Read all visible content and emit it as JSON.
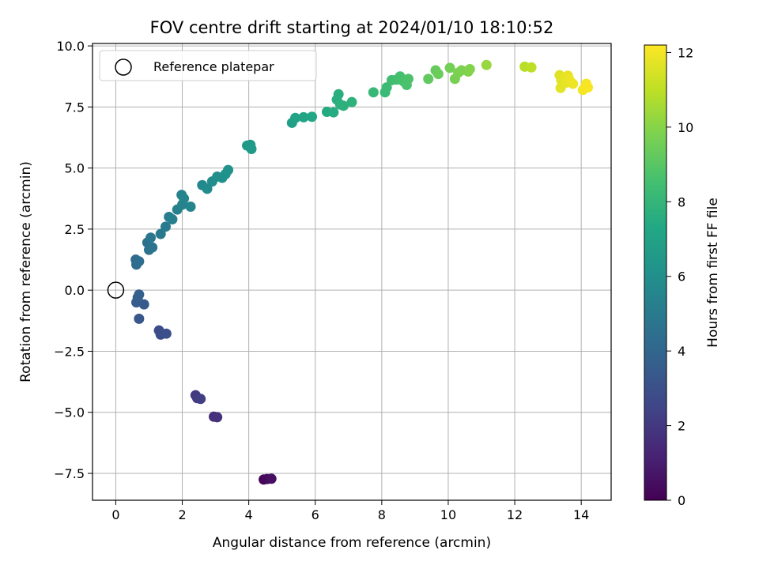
{
  "chart_data": {
    "type": "scatter",
    "title": "FOV centre drift starting at 2024/01/10 18:10:52",
    "xlabel": "Angular distance from reference (arcmin)",
    "ylabel": "Rotation from reference (arcmin)",
    "xlim": [
      -0.7,
      14.9
    ],
    "ylim": [
      -8.6,
      10.1
    ],
    "xticks": [
      0,
      2,
      4,
      6,
      8,
      10,
      12,
      14
    ],
    "yticks": [
      -7.5,
      -5.0,
      -2.5,
      0.0,
      2.5,
      5.0,
      7.5,
      10.0
    ],
    "ytick_labels": [
      "−7.5",
      "−5.0",
      "−2.5",
      "0.0",
      "2.5",
      "5.0",
      "7.5",
      "10.0"
    ],
    "grid": true,
    "legend": {
      "position": "top-left",
      "entries": [
        {
          "label": "Reference platepar",
          "marker": "open-circle"
        }
      ]
    },
    "reference_point": {
      "x": 0,
      "y": 0,
      "label": "Reference platepar"
    },
    "colorbar": {
      "label": "Hours from first FF file",
      "colormap": "viridis",
      "min": 0,
      "max": 12.2,
      "ticks": [
        0,
        2,
        4,
        6,
        8,
        10,
        12
      ]
    },
    "series": [
      {
        "points": [
          [
            4.45,
            -7.75,
            0.1
          ],
          [
            4.55,
            -7.73,
            0.3
          ],
          [
            4.68,
            -7.72,
            0.5
          ],
          [
            2.95,
            -5.18,
            1.6
          ],
          [
            3.05,
            -5.2,
            1.7
          ],
          [
            2.4,
            -4.3,
            2.0
          ],
          [
            2.45,
            -4.42,
            2.1
          ],
          [
            2.55,
            -4.45,
            2.2
          ],
          [
            1.3,
            -1.65,
            2.8
          ],
          [
            1.35,
            -1.82,
            2.9
          ],
          [
            1.52,
            -1.78,
            3.0
          ],
          [
            0.7,
            -1.17,
            3.3
          ],
          [
            0.85,
            -0.58,
            3.4
          ],
          [
            0.62,
            -0.5,
            3.5
          ],
          [
            0.66,
            -0.3,
            3.6
          ],
          [
            0.7,
            -0.18,
            3.7
          ],
          [
            0.6,
            1.25,
            4.2
          ],
          [
            0.62,
            1.05,
            4.3
          ],
          [
            0.7,
            1.18,
            4.4
          ],
          [
            0.95,
            1.95,
            4.5
          ],
          [
            1.0,
            1.65,
            4.6
          ],
          [
            1.1,
            1.75,
            4.7
          ],
          [
            1.05,
            2.15,
            4.8
          ],
          [
            1.35,
            2.3,
            4.9
          ],
          [
            1.5,
            2.6,
            5.0
          ],
          [
            1.6,
            3.0,
            5.1
          ],
          [
            1.7,
            2.9,
            5.2
          ],
          [
            1.85,
            3.3,
            5.3
          ],
          [
            2.0,
            3.5,
            5.35
          ],
          [
            1.98,
            3.9,
            5.4
          ],
          [
            2.05,
            3.75,
            5.45
          ],
          [
            2.25,
            3.42,
            5.5
          ],
          [
            2.6,
            4.3,
            5.7
          ],
          [
            2.75,
            4.15,
            5.8
          ],
          [
            2.9,
            4.45,
            5.9
          ],
          [
            3.05,
            4.65,
            6.0
          ],
          [
            3.2,
            4.6,
            6.05
          ],
          [
            3.3,
            4.75,
            6.1
          ],
          [
            3.38,
            4.92,
            6.2
          ],
          [
            3.95,
            5.92,
            6.5
          ],
          [
            4.05,
            5.95,
            6.55
          ],
          [
            4.08,
            5.78,
            6.6
          ],
          [
            5.3,
            6.85,
            6.9
          ],
          [
            5.4,
            7.05,
            7.0
          ],
          [
            5.65,
            7.08,
            7.1
          ],
          [
            5.9,
            7.1,
            7.2
          ],
          [
            6.35,
            7.3,
            7.4
          ],
          [
            6.55,
            7.28,
            7.5
          ],
          [
            6.65,
            7.8,
            7.6
          ],
          [
            6.7,
            8.02,
            7.65
          ],
          [
            6.75,
            7.6,
            7.7
          ],
          [
            6.85,
            7.55,
            7.75
          ],
          [
            7.1,
            7.7,
            7.8
          ],
          [
            7.75,
            8.1,
            8.1
          ],
          [
            8.1,
            8.1,
            8.2
          ],
          [
            8.15,
            8.3,
            8.3
          ],
          [
            8.3,
            8.6,
            8.4
          ],
          [
            8.45,
            8.62,
            8.5
          ],
          [
            8.55,
            8.75,
            8.55
          ],
          [
            8.65,
            8.55,
            8.6
          ],
          [
            8.75,
            8.4,
            8.65
          ],
          [
            8.8,
            8.65,
            8.7
          ],
          [
            9.4,
            8.65,
            9.2
          ],
          [
            9.62,
            9.0,
            9.3
          ],
          [
            9.7,
            8.85,
            9.4
          ],
          [
            10.05,
            9.1,
            9.6
          ],
          [
            10.2,
            8.65,
            9.7
          ],
          [
            10.3,
            8.9,
            9.75
          ],
          [
            10.4,
            9.0,
            9.8
          ],
          [
            10.6,
            8.95,
            9.85
          ],
          [
            10.65,
            9.05,
            9.9
          ],
          [
            11.15,
            9.22,
            10.3
          ],
          [
            12.3,
            9.15,
            10.9
          ],
          [
            12.5,
            9.12,
            11.0
          ],
          [
            13.35,
            8.8,
            11.6
          ],
          [
            13.4,
            8.6,
            11.65
          ],
          [
            13.38,
            8.28,
            11.7
          ],
          [
            13.5,
            8.7,
            11.7
          ],
          [
            13.55,
            8.5,
            11.75
          ],
          [
            13.6,
            8.78,
            11.8
          ],
          [
            13.65,
            8.6,
            11.85
          ],
          [
            13.75,
            8.45,
            11.9
          ],
          [
            14.05,
            8.2,
            12.0
          ],
          [
            14.15,
            8.45,
            12.05
          ],
          [
            14.2,
            8.3,
            12.1
          ]
        ]
      }
    ]
  }
}
